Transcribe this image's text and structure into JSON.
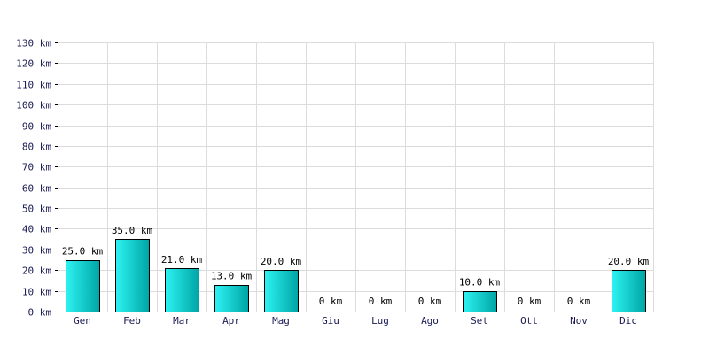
{
  "chart_data": {
    "type": "bar",
    "categories": [
      "Gen",
      "Feb",
      "Mar",
      "Apr",
      "Mag",
      "Giu",
      "Lug",
      "Ago",
      "Set",
      "Ott",
      "Nov",
      "Dic"
    ],
    "values": [
      25,
      35,
      21,
      13,
      20,
      0,
      0,
      0,
      10,
      0,
      0,
      20
    ],
    "value_labels": [
      "25.0 km",
      "35.0 km",
      "21.0 km",
      "13.0 km",
      "20.0 km",
      "0 km",
      "0 km",
      "0 km",
      "10.0 km",
      "0 km",
      "0 km",
      "20.0 km"
    ],
    "y_ticks": [
      0,
      10,
      20,
      30,
      40,
      50,
      60,
      70,
      80,
      90,
      100,
      110,
      120,
      130
    ],
    "y_tick_labels": [
      "0 km",
      "10 km",
      "20 km",
      "30 km",
      "40 km",
      "50 km",
      "60 km",
      "70 km",
      "80 km",
      "90 km",
      "100 km",
      "110 km",
      "120 km",
      "130 km"
    ],
    "ylim": [
      0,
      130
    ],
    "grid": true,
    "bar_color_light": "#2ef2f2",
    "bar_color_dark": "#00a5a5"
  }
}
